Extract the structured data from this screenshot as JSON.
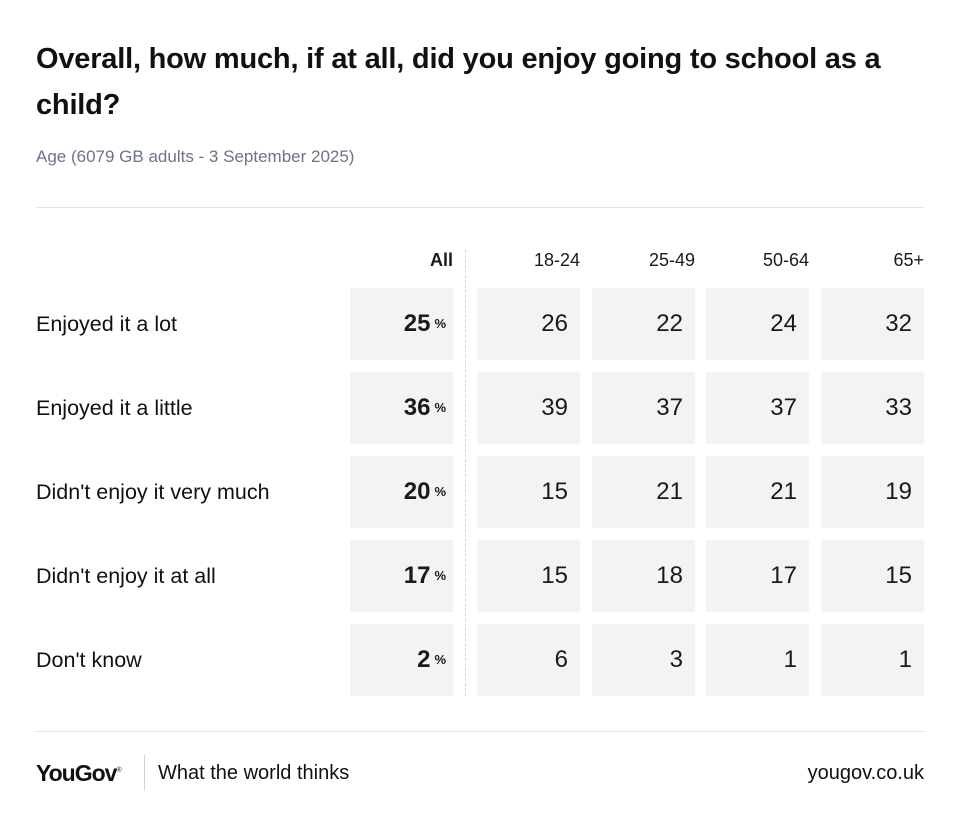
{
  "header": {
    "title": "Overall, how much, if at all, did you enjoy going to school as a child?",
    "subtitle": "Age (6079 GB adults - 3 September 2025)"
  },
  "chart_data": {
    "type": "table",
    "title": "Overall, how much, if at all, did you enjoy going to school as a child?",
    "subtitle": "Age (6079 GB adults - 3 September 2025)",
    "unit": "%",
    "columns": [
      "All",
      "18-24",
      "25-49",
      "50-64",
      "65+"
    ],
    "rows": [
      {
        "label": "Enjoyed it a lot",
        "values": [
          25,
          26,
          22,
          24,
          32
        ]
      },
      {
        "label": "Enjoyed it a little",
        "values": [
          36,
          39,
          37,
          37,
          33
        ]
      },
      {
        "label": "Didn't enjoy it very much",
        "values": [
          20,
          15,
          21,
          21,
          19
        ]
      },
      {
        "label": "Didn't enjoy it at all",
        "values": [
          17,
          15,
          18,
          17,
          15
        ]
      },
      {
        "label": "Don't know",
        "values": [
          2,
          6,
          3,
          1,
          1
        ]
      }
    ]
  },
  "footer": {
    "logo": "YouGov",
    "tagline": "What the world thinks",
    "url": "yougov.co.uk"
  }
}
